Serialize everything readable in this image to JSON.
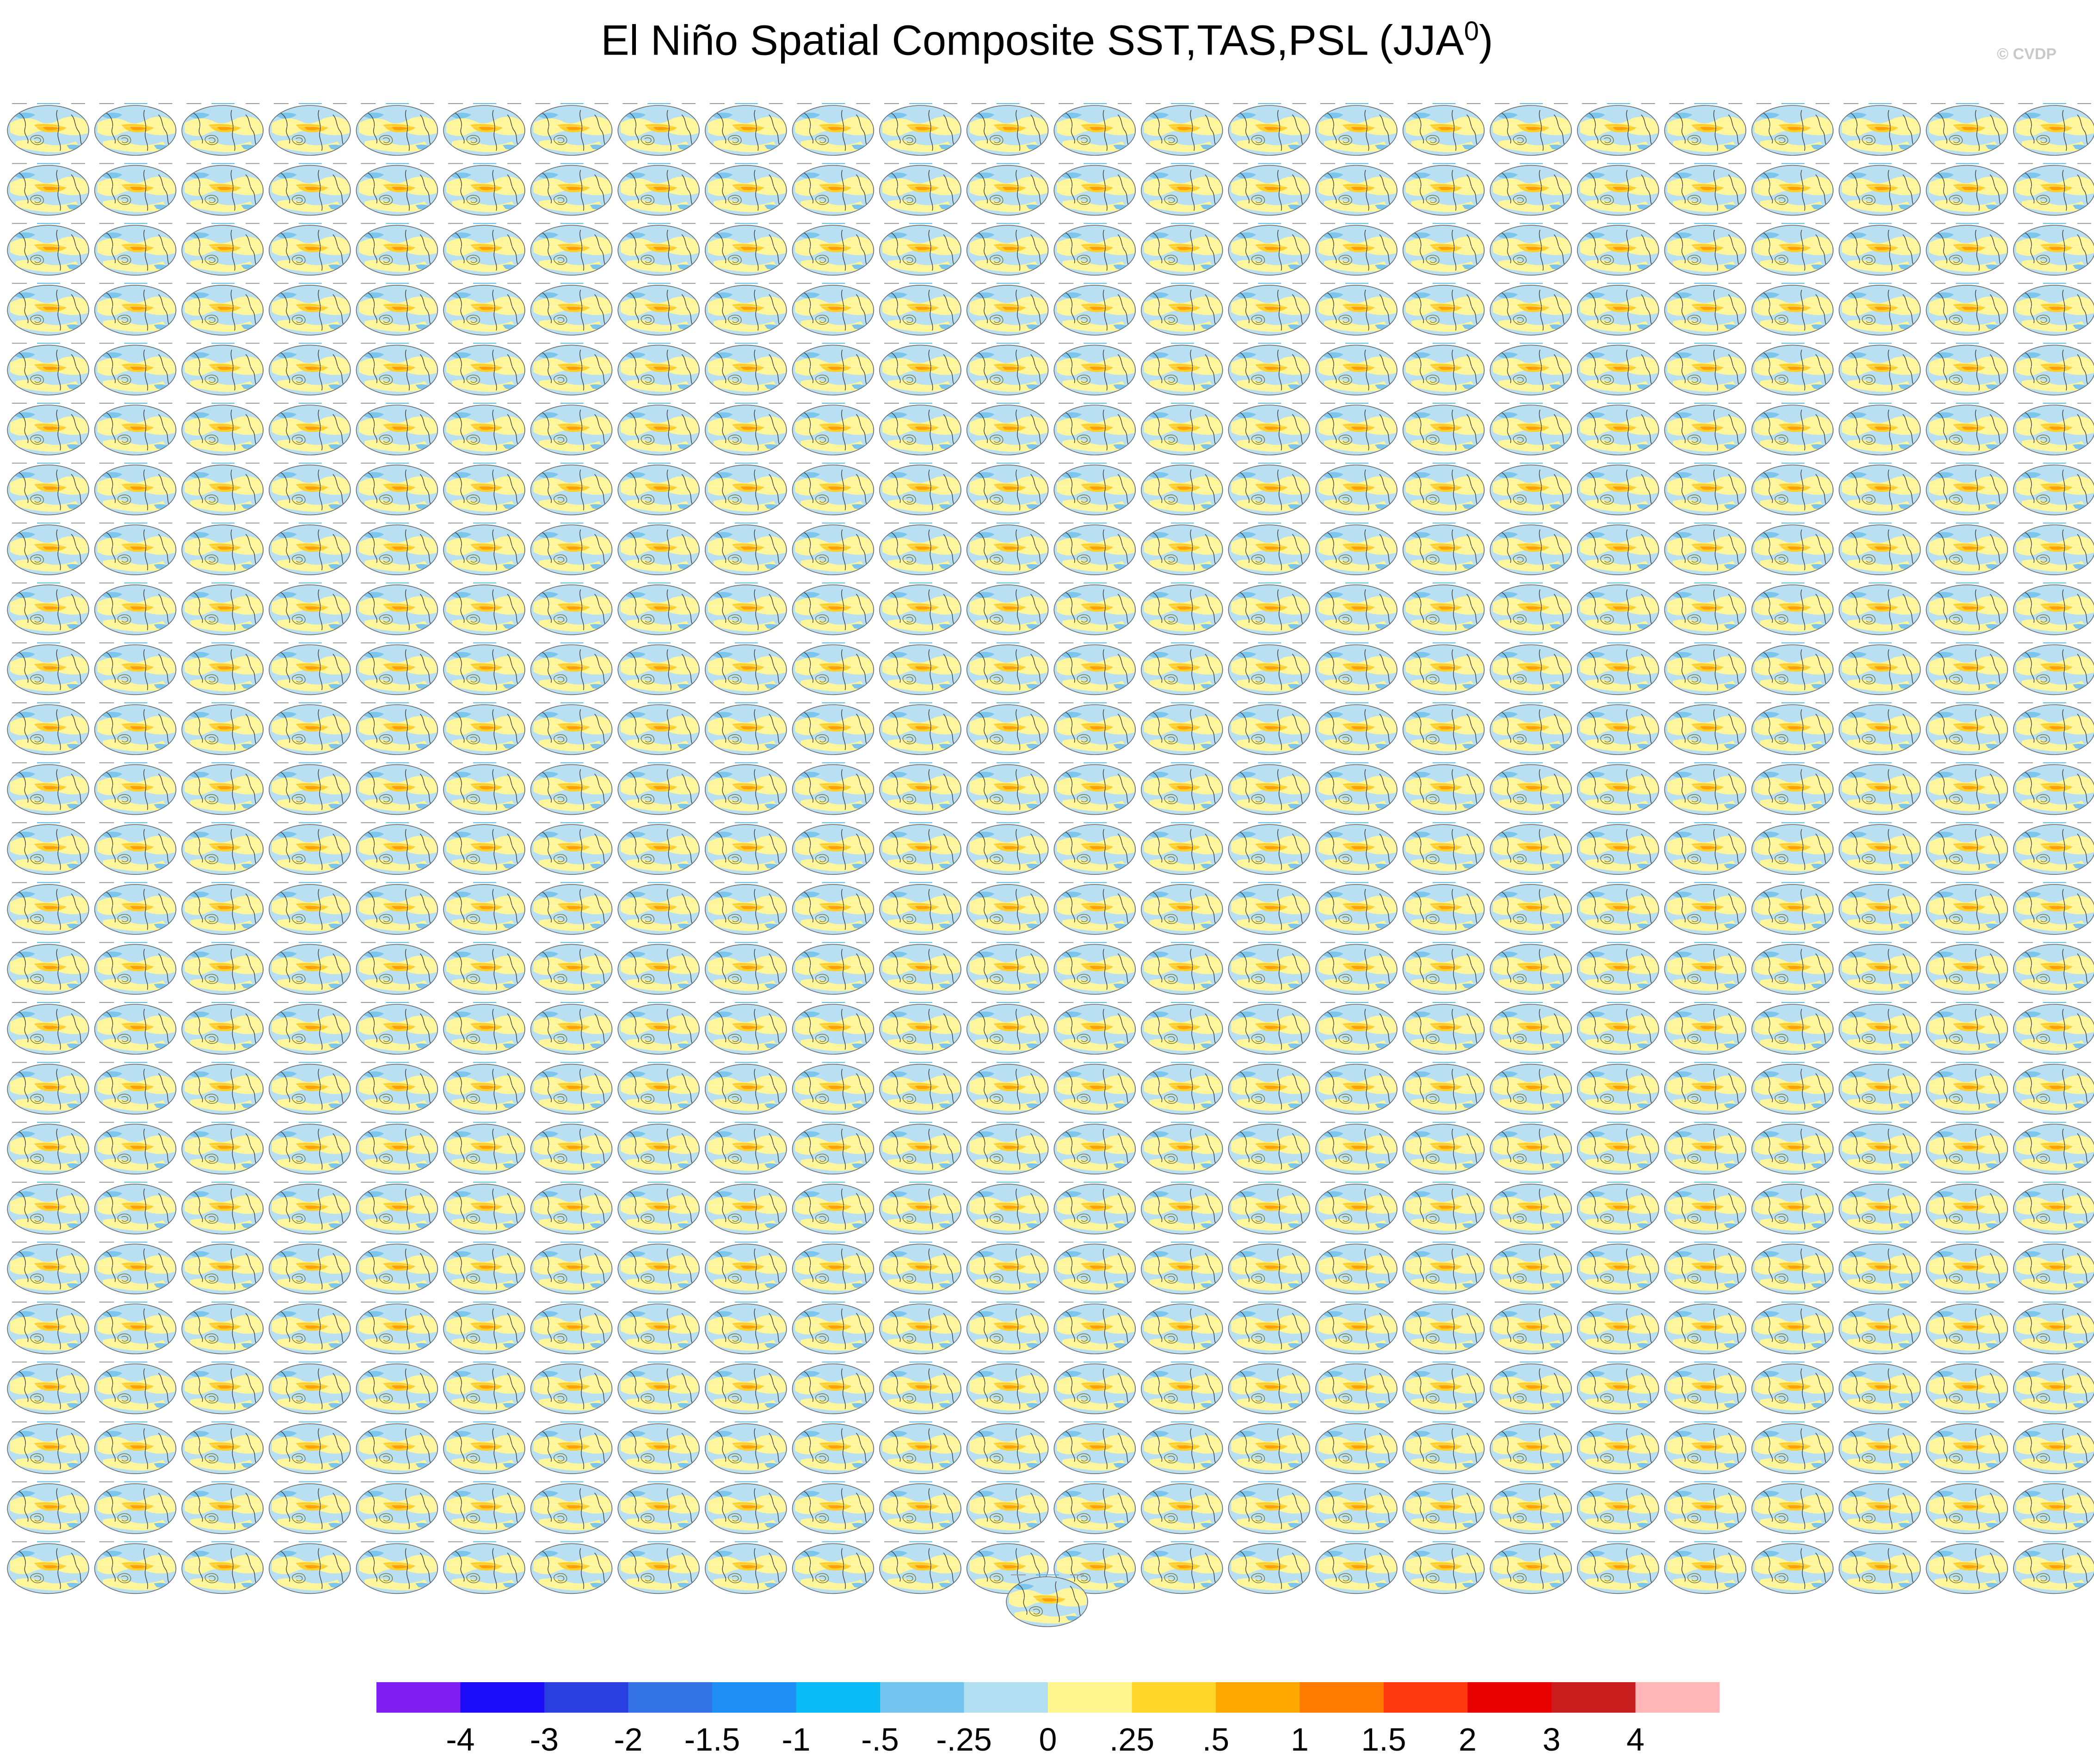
{
  "figure": {
    "title_main": "El Niño Spatial Composite SST,TAS,PSL (JJA",
    "title_superscript": "0",
    "title_close": ")",
    "credit": "© CVDP"
  },
  "chart_data": {
    "type": "heatmap",
    "title": "El Niño Spatial Composite SST,TAS,PSL (JJA0)",
    "panel_grid": {
      "rows": 25,
      "columns": 24,
      "extra_panels_last_row": 1,
      "total_panels": 601
    },
    "panel_kind": "global map of SST/TAS composite anomaly with PSL contours",
    "colorbar": {
      "tick_labels": [
        "-4",
        "-3",
        "-2",
        "-1.5",
        "-1",
        "-.5",
        "-.25",
        "0",
        ".25",
        ".5",
        "1",
        "1.5",
        "2",
        "3",
        "4"
      ],
      "tick_values": [
        -4,
        -3,
        -2,
        -1.5,
        -1,
        -0.5,
        -0.25,
        0,
        0.25,
        0.5,
        1,
        1.5,
        2,
        3,
        4
      ],
      "colors": [
        "#7f1ef0",
        "#1c0bf6",
        "#2a3fe0",
        "#3474e6",
        "#1f8ff6",
        "#0bbbf6",
        "#72c4ee",
        "#b2dff1",
        "#fff690",
        "#ffd52a",
        "#ffa800",
        "#ff7a00",
        "#ff3a10",
        "#e60000",
        "#c81e1e",
        "#ffb6b6"
      ]
    }
  }
}
